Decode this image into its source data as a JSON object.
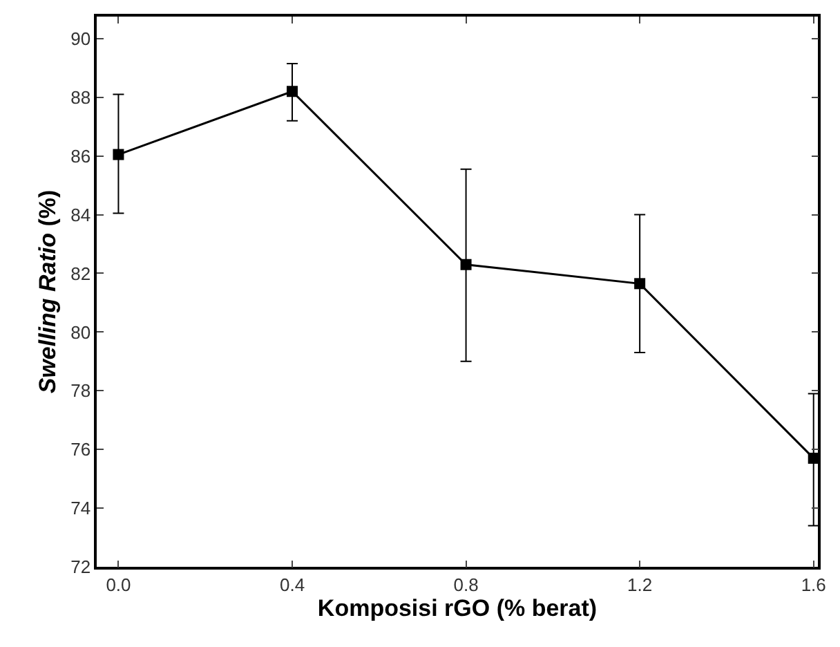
{
  "chart_data": {
    "type": "line",
    "xlabel": "Komposisi rGO (% berat)",
    "ylabel": "Swelling Ratio (%)",
    "x": [
      0.0,
      0.4,
      0.8,
      1.2,
      1.6
    ],
    "series": [
      {
        "color": "#000000",
        "values": [
          86.05,
          88.2,
          82.3,
          81.65,
          75.7
        ],
        "errors": [
          [
            84.05,
            88.1
          ],
          [
            87.2,
            89.15
          ],
          [
            79.0,
            85.55
          ],
          [
            79.3,
            84.0
          ],
          [
            73.4,
            77.9
          ]
        ]
      }
    ],
    "xlim": [
      -0.05,
      1.61
    ],
    "xticks": [
      {
        "value": 0,
        "label": "0.0"
      },
      0.4,
      0.8,
      1.2,
      1.6
    ],
    "ylim": [
      72,
      90.75
    ],
    "yticks": [
      72,
      74,
      76,
      78,
      80,
      82,
      84,
      86,
      88,
      90
    ],
    "marker": "square",
    "line_style": "solid"
  }
}
